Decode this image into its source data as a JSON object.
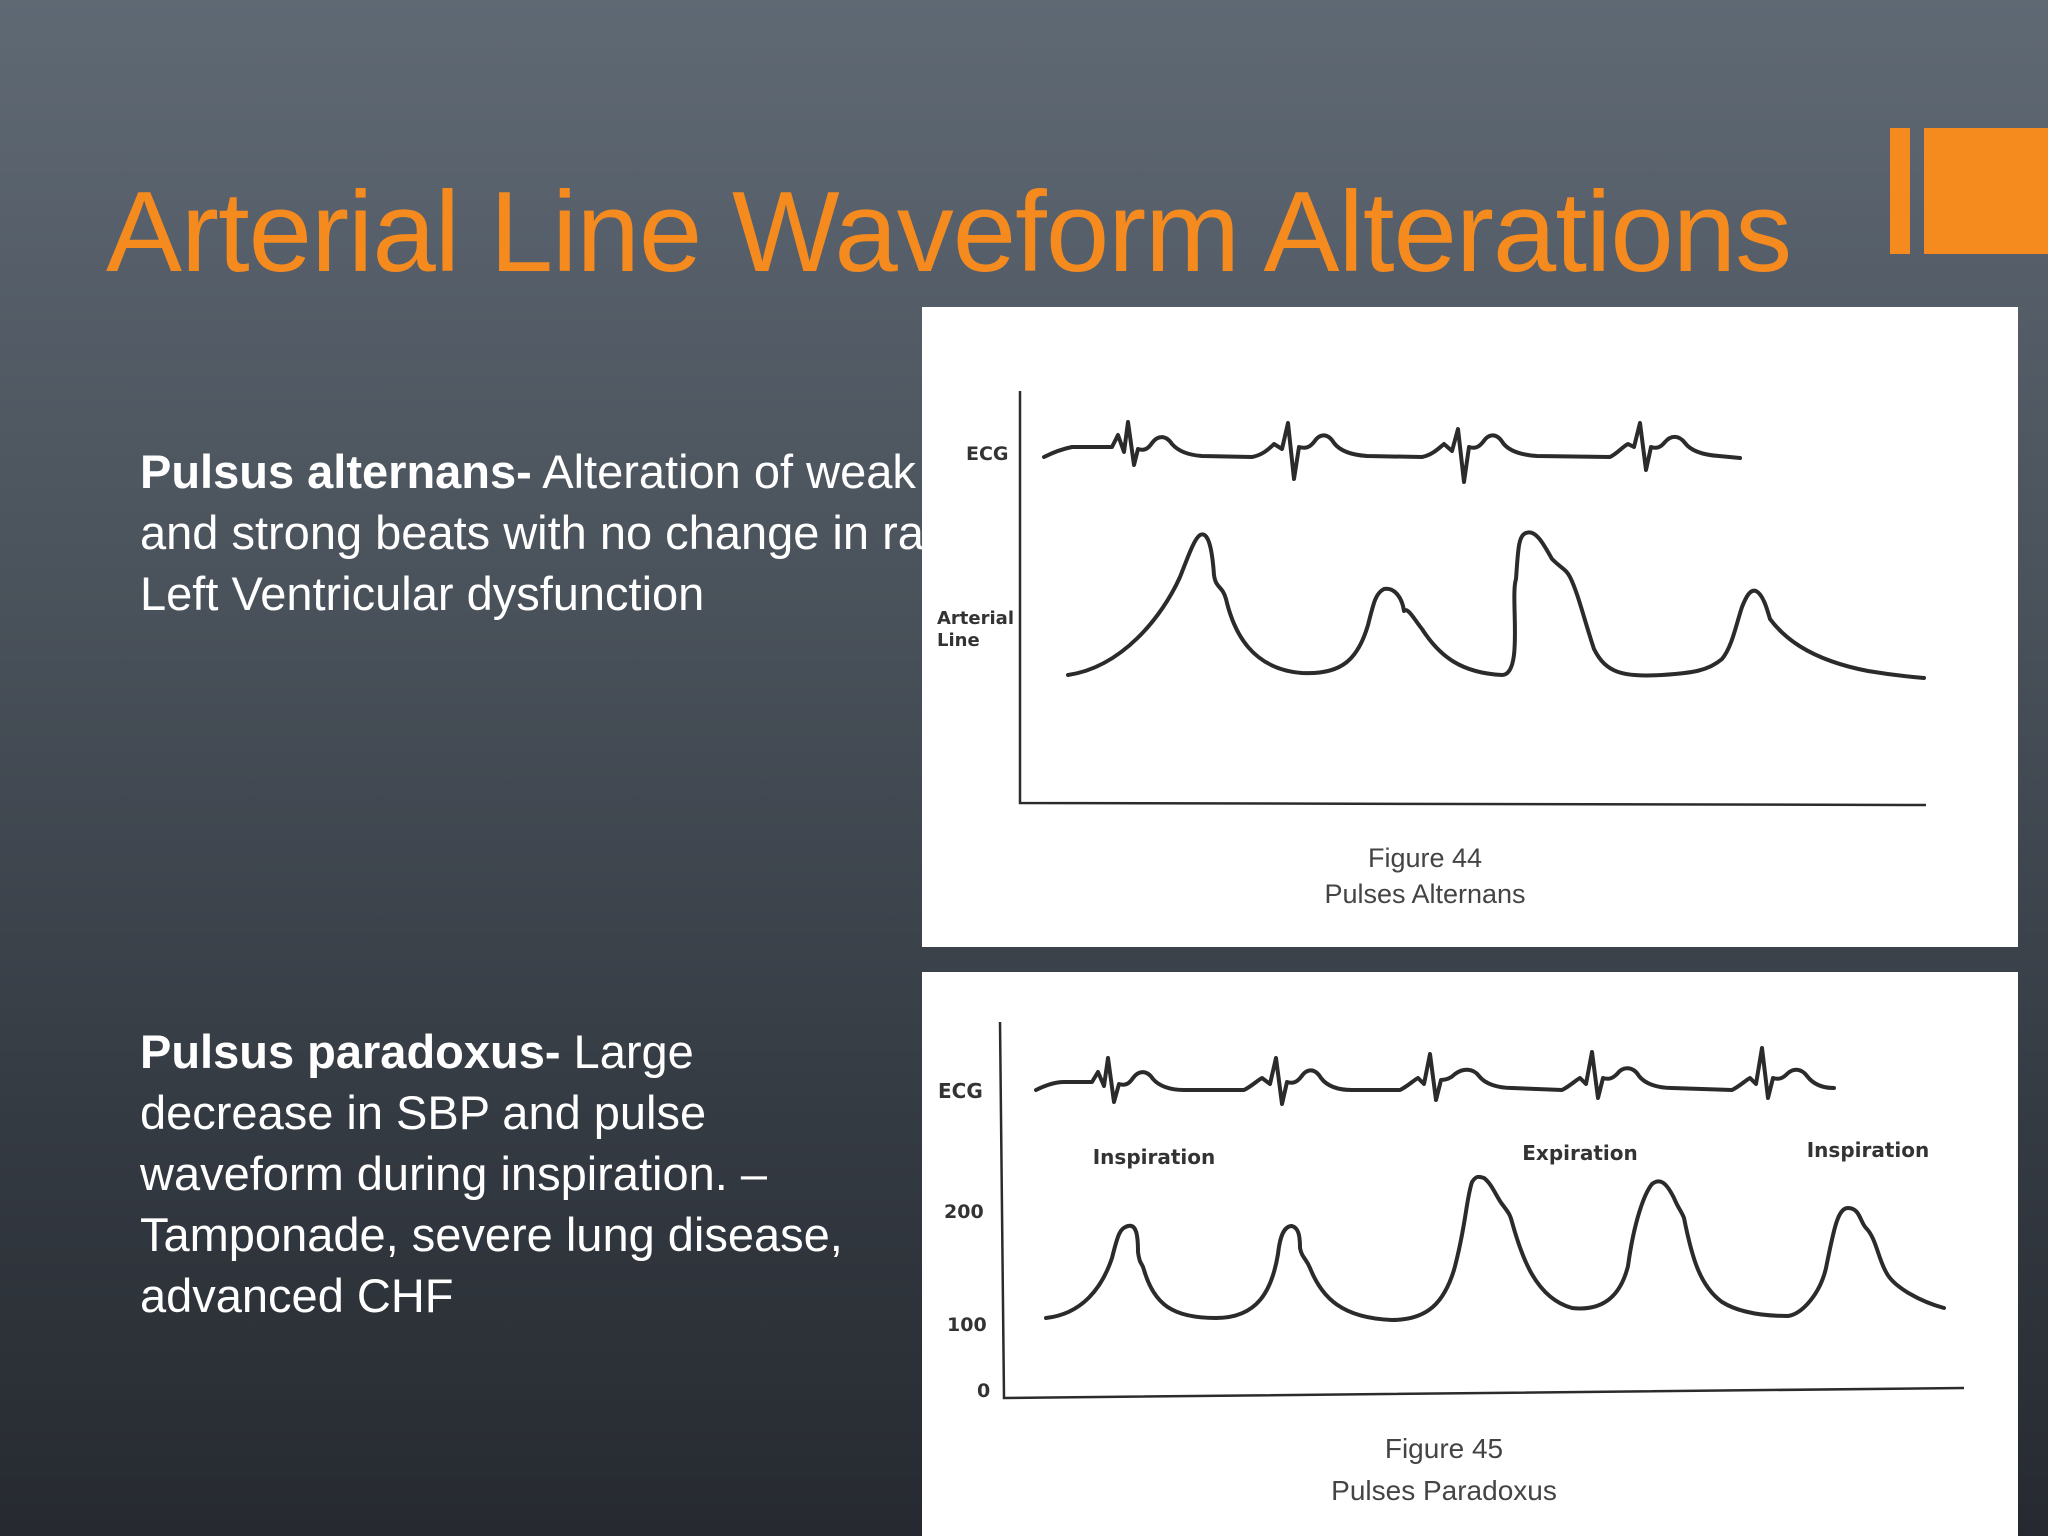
{
  "slide": {
    "title": "Arterial Line Waveform Alterations",
    "accent_color": "#f58a1f"
  },
  "bullets": [
    {
      "term": "Pulsus alternans-",
      "text": " Alteration of weak and strong beats with no change in rate- Left Ventricular dysfunction"
    },
    {
      "term": "Pulsus paradoxus-",
      "text": " Large decrease in SBP and pulse waveform during inspiration. – Tamponade, severe lung disease, advanced CHF"
    }
  ],
  "figure_44": {
    "ecg_label": "ECG",
    "arterial_label_line1": "Arterial",
    "arterial_label_line2": "Line",
    "caption_number": "Figure 44",
    "caption_title": "Pulses Alternans"
  },
  "figure_45": {
    "ecg_label": "ECG",
    "phase_labels": [
      "Inspiration",
      "Expiration",
      "Inspiration"
    ],
    "y_ticks": [
      "200",
      "100",
      "0"
    ],
    "caption_number": "Figure 45",
    "caption_title": "Pulses Paradoxus"
  }
}
